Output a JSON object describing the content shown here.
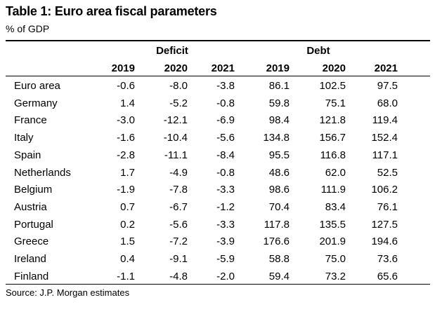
{
  "title": "Table 1: Euro area fiscal parameters",
  "subtitle": "% of GDP",
  "groups": {
    "deficit": "Deficit",
    "debt": "Debt"
  },
  "years": [
    "2019",
    "2020",
    "2021",
    "2019",
    "2020",
    "2021"
  ],
  "rows": [
    {
      "country": "Euro area",
      "values": [
        "-0.6",
        "-8.0",
        "-3.8",
        "86.1",
        "102.5",
        "97.5"
      ]
    },
    {
      "country": "Germany",
      "values": [
        "1.4",
        "-5.2",
        "-0.8",
        "59.8",
        "75.1",
        "68.0"
      ]
    },
    {
      "country": "France",
      "values": [
        "-3.0",
        "-12.1",
        "-6.9",
        "98.4",
        "121.8",
        "119.4"
      ]
    },
    {
      "country": "Italy",
      "values": [
        "-1.6",
        "-10.4",
        "-5.6",
        "134.8",
        "156.7",
        "152.4"
      ]
    },
    {
      "country": "Spain",
      "values": [
        "-2.8",
        "-11.1",
        "-8.4",
        "95.5",
        "116.8",
        "117.1"
      ]
    },
    {
      "country": "Netherlands",
      "values": [
        "1.7",
        "-4.9",
        "-0.8",
        "48.6",
        "62.0",
        "52.5"
      ]
    },
    {
      "country": "Belgium",
      "values": [
        "-1.9",
        "-7.8",
        "-3.3",
        "98.6",
        "111.9",
        "106.2"
      ]
    },
    {
      "country": "Austria",
      "values": [
        "0.7",
        "-6.7",
        "-1.2",
        "70.4",
        "83.4",
        "76.1"
      ]
    },
    {
      "country": "Portugal",
      "values": [
        "0.2",
        "-5.6",
        "-3.3",
        "117.8",
        "135.5",
        "127.5"
      ]
    },
    {
      "country": "Greece",
      "values": [
        "1.5",
        "-7.2",
        "-3.9",
        "176.6",
        "201.9",
        "194.6"
      ]
    },
    {
      "country": "Ireland",
      "values": [
        "0.4",
        "-9.1",
        "-5.9",
        "58.8",
        "75.0",
        "73.6"
      ]
    },
    {
      "country": "Finland",
      "values": [
        "-1.1",
        "-4.8",
        "-2.0",
        "59.4",
        "73.2",
        "65.6"
      ]
    }
  ],
  "source": "Source: J.P. Morgan estimates"
}
